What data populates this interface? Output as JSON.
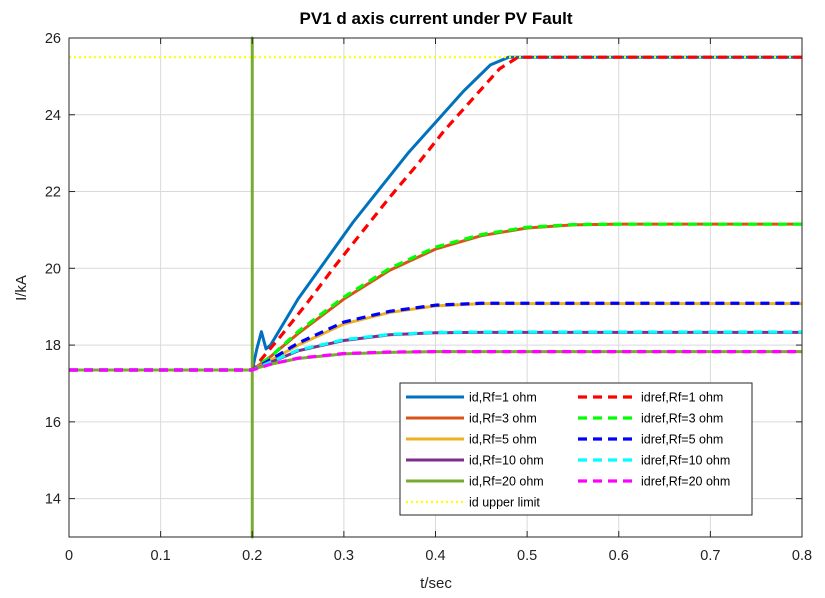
{
  "chart_data": {
    "type": "line",
    "title": "PV1 d axis current under PV Fault",
    "xlabel": "t/sec",
    "ylabel": "I/kA",
    "xlim": [
      0,
      0.8
    ],
    "ylim": [
      13,
      26
    ],
    "xticks": [
      "0",
      "0.1",
      "0.2",
      "0.3",
      "0.4",
      "0.5",
      "0.6",
      "0.7",
      "0.8"
    ],
    "yticks": [
      "14",
      "16",
      "18",
      "20",
      "22",
      "24",
      "26"
    ],
    "grid": true,
    "legend_position": "bottom-right",
    "series": [
      {
        "name": "id,Rf=1 ohm",
        "color": "#0072BD",
        "style": "solid",
        "x": [
          0,
          0.2,
          0.205,
          0.21,
          0.215,
          0.22,
          0.23,
          0.25,
          0.28,
          0.31,
          0.34,
          0.37,
          0.4,
          0.43,
          0.46,
          0.48,
          0.8
        ],
        "y": [
          17.35,
          17.35,
          17.9,
          18.35,
          17.9,
          18.0,
          18.4,
          19.2,
          20.2,
          21.2,
          22.1,
          23.0,
          23.8,
          24.6,
          25.3,
          25.5,
          25.5
        ]
      },
      {
        "name": "id,Rf=3 ohm",
        "color": "#D95319",
        "style": "solid",
        "x": [
          0,
          0.2,
          0.22,
          0.25,
          0.3,
          0.35,
          0.4,
          0.45,
          0.5,
          0.55,
          0.6,
          0.8
        ],
        "y": [
          17.35,
          17.35,
          17.7,
          18.3,
          19.2,
          19.95,
          20.5,
          20.85,
          21.05,
          21.13,
          21.15,
          21.15
        ]
      },
      {
        "name": "id,Rf=5 ohm",
        "color": "#EDB120",
        "style": "solid",
        "x": [
          0,
          0.2,
          0.22,
          0.25,
          0.3,
          0.35,
          0.4,
          0.45,
          0.5,
          0.8
        ],
        "y": [
          17.35,
          17.35,
          17.6,
          18.0,
          18.55,
          18.85,
          19.02,
          19.08,
          19.08,
          19.08
        ]
      },
      {
        "name": "id,Rf=10 ohm",
        "color": "#7E2F8E",
        "style": "solid",
        "x": [
          0,
          0.2,
          0.22,
          0.25,
          0.3,
          0.35,
          0.4,
          0.45,
          0.8
        ],
        "y": [
          17.35,
          17.35,
          17.55,
          17.85,
          18.12,
          18.27,
          18.32,
          18.33,
          18.33
        ]
      },
      {
        "name": "id,Rf=20 ohm",
        "color": "#77AC30",
        "style": "solid",
        "x": [
          0,
          0.2,
          0.2,
          0.2,
          0.2,
          0.205,
          0.22,
          0.25,
          0.3,
          0.35,
          0.4,
          0.8
        ],
        "y": [
          17.35,
          17.35,
          26.0,
          13.0,
          17.35,
          17.4,
          17.5,
          17.65,
          17.77,
          17.81,
          17.83,
          17.83
        ]
      },
      {
        "name": "id upper limit",
        "color": "#FFFF00",
        "style": "dotted",
        "x": [
          0,
          0.8
        ],
        "y": [
          25.5,
          25.5
        ]
      },
      {
        "name": "idref,Rf=1 ohm",
        "color": "#FF0000",
        "style": "dashed",
        "x": [
          0,
          0.2,
          0.23,
          0.26,
          0.29,
          0.32,
          0.35,
          0.38,
          0.41,
          0.44,
          0.47,
          0.49,
          0.8
        ],
        "y": [
          17.35,
          17.35,
          18.2,
          19.1,
          20.05,
          20.95,
          21.85,
          22.7,
          23.6,
          24.4,
          25.2,
          25.5,
          25.5
        ]
      },
      {
        "name": "idref,Rf=3 ohm",
        "color": "#00FF00",
        "style": "dashed",
        "x": [
          0,
          0.2,
          0.22,
          0.25,
          0.3,
          0.35,
          0.4,
          0.45,
          0.5,
          0.55,
          0.6,
          0.8
        ],
        "y": [
          17.35,
          17.35,
          17.7,
          18.35,
          19.25,
          20.0,
          20.55,
          20.88,
          21.07,
          21.14,
          21.15,
          21.15
        ]
      },
      {
        "name": "idref,Rf=5 ohm",
        "color": "#0000FF",
        "style": "dashed",
        "x": [
          0,
          0.2,
          0.22,
          0.25,
          0.3,
          0.35,
          0.4,
          0.45,
          0.5,
          0.8
        ],
        "y": [
          17.35,
          17.35,
          17.62,
          18.05,
          18.6,
          18.88,
          19.04,
          19.09,
          19.09,
          19.09
        ]
      },
      {
        "name": "idref,Rf=10 ohm",
        "color": "#00FFFF",
        "style": "dashed",
        "x": [
          0,
          0.2,
          0.22,
          0.25,
          0.3,
          0.35,
          0.4,
          0.45,
          0.8
        ],
        "y": [
          17.35,
          17.35,
          17.56,
          17.87,
          18.14,
          18.28,
          18.33,
          18.34,
          18.34
        ]
      },
      {
        "name": "idref,Rf=20 ohm",
        "color": "#FF00FF",
        "style": "dashed",
        "x": [
          0,
          0.2,
          0.22,
          0.25,
          0.3,
          0.35,
          0.4,
          0.8
        ],
        "y": [
          17.35,
          17.35,
          17.5,
          17.66,
          17.78,
          17.82,
          17.83,
          17.83
        ]
      }
    ],
    "legend_columns": [
      [
        "id,Rf=1 ohm",
        "id,Rf=3 ohm",
        "id,Rf=5 ohm",
        "id,Rf=10 ohm",
        "id,Rf=20 ohm",
        "id upper limit"
      ],
      [
        "idref,Rf=1 ohm",
        "idref,Rf=3 ohm",
        "idref,Rf=5 ohm",
        "idref,Rf=10 ohm",
        "idref,Rf=20 ohm"
      ]
    ]
  }
}
